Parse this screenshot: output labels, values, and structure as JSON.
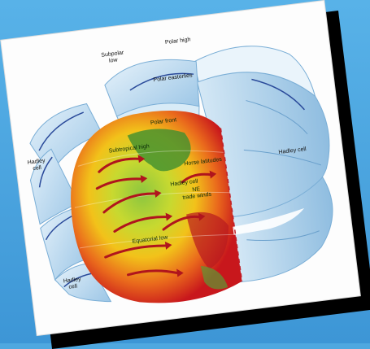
{
  "diagram": {
    "labels": {
      "subpolar_low": "Subpolar\nlow",
      "polar_high": "Polar high",
      "polar_easterlies": "Polar easterlies",
      "polar_front": "Polar front",
      "subtropical_high": "Subtropical high",
      "hadley_cell_left_top": "Hadley\ncell",
      "hadley_cell_right": "Hadley cell",
      "horse_latitudes": "Horse latitudes",
      "hadley_cell_center": "Hadley cell",
      "ne_trade_winds": "NE\ntrade winds",
      "equatorial_low": "Equatorial low",
      "hadley_cell_left_bottom": "Hadley\ncell"
    },
    "colors": {
      "background": "#4fa8e0",
      "frame": "#fdfdfd",
      "shadow": "#000000",
      "cell_blue": "#b9d9ef",
      "arrow_red": "#c0202a",
      "arrow_blue": "#2a4a9a"
    }
  }
}
